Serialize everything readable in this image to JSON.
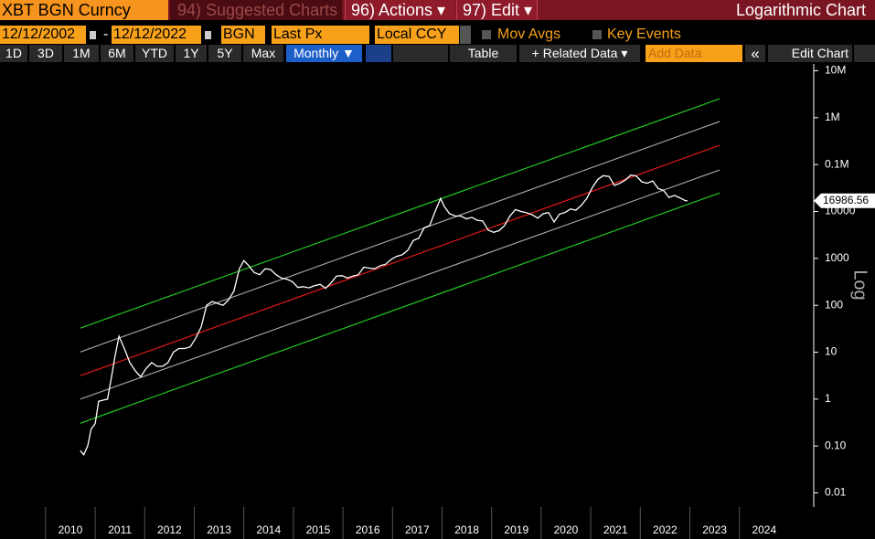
{
  "toolbar": {
    "security": "XBT BGN Curncy",
    "suggested": "94) Suggested Charts",
    "actions": "96) Actions ▾",
    "edit": "97) Edit ▾",
    "chart_mode": "Logarithmic Chart",
    "start_date": "12/12/2002",
    "date_sep": "-",
    "end_date": "12/12/2022",
    "source": "BGN",
    "field": "Last Px",
    "currency": "Local CCY",
    "mov_avgs": "Mov Avgs",
    "key_events": "Key Events",
    "periods": [
      "1D",
      "3D",
      "1M",
      "6M",
      "YTD",
      "1Y",
      "5Y",
      "Max"
    ],
    "frequency": "Monthly ▼",
    "table": "Table",
    "related": "+ Related Data ▾",
    "add_data": "Add Data",
    "collapse": "«",
    "edit_chart": "Edit Chart"
  },
  "chart_data": {
    "type": "line",
    "ylabel": "Log",
    "log_scale": true,
    "grid": false,
    "xlim": [
      2009.08,
      2025.5
    ],
    "xticks": [
      2010,
      2011,
      2012,
      2013,
      2014,
      2015,
      2016,
      2017,
      2018,
      2019,
      2020,
      2021,
      2022,
      2023,
      2024
    ],
    "ylim": [
      0.005,
      14000000
    ],
    "yticks": [
      {
        "value": 10000000,
        "label": "10M"
      },
      {
        "value": 1000000,
        "label": "1M"
      },
      {
        "value": 100000,
        "label": "0.1M"
      },
      10000,
      1000,
      100,
      10,
      1,
      {
        "value": 0.1,
        "label": "0.10"
      },
      0.01
    ],
    "series": [
      {
        "color": "#ffffff",
        "x": [
          2010.7,
          2010.77,
          2010.85,
          2010.92,
          2011.0,
          2011.07,
          2011.16,
          2011.25,
          2011.33,
          2011.4,
          2011.48,
          2011.59,
          2011.7,
          2011.81,
          2011.92,
          2012.03,
          2012.14,
          2012.25,
          2012.36,
          2012.47,
          2012.58,
          2012.69,
          2012.8,
          2012.92,
          2013.03,
          2013.14,
          2013.25,
          2013.36,
          2013.47,
          2013.58,
          2013.69,
          2013.8,
          2013.91,
          2014.0,
          2014.1,
          2014.21,
          2014.32,
          2014.43,
          2014.54,
          2014.65,
          2014.76,
          2014.87,
          2014.98,
          2015.09,
          2015.2,
          2015.31,
          2015.42,
          2015.54,
          2015.65,
          2015.76,
          2015.87,
          2015.98,
          2016.09,
          2016.2,
          2016.31,
          2016.42,
          2016.53,
          2016.64,
          2016.75,
          2016.86,
          2016.97,
          2017.08,
          2017.2,
          2017.31,
          2017.42,
          2017.53,
          2017.64,
          2017.75,
          2017.86,
          2017.97,
          2018.04,
          2018.15,
          2018.27,
          2018.38,
          2018.49,
          2018.6,
          2018.71,
          2018.82,
          2018.93,
          2019.04,
          2019.15,
          2019.26,
          2019.37,
          2019.48,
          2019.59,
          2019.7,
          2019.82,
          2019.93,
          2020.04,
          2020.15,
          2020.26,
          2020.37,
          2020.48,
          2020.59,
          2020.7,
          2020.81,
          2020.92,
          2021.03,
          2021.14,
          2021.25,
          2021.37,
          2021.48,
          2021.59,
          2021.7,
          2021.81,
          2021.92,
          2022.03,
          2022.14,
          2022.25,
          2022.36,
          2022.47,
          2022.58,
          2022.69,
          2022.8,
          2022.91,
          2022.95
        ],
        "values": [
          0.08,
          0.065,
          0.1,
          0.23,
          0.3,
          0.9,
          0.95,
          1.0,
          3,
          8,
          22,
          12,
          6,
          4,
          3,
          4.5,
          6,
          5,
          5,
          6,
          10,
          12,
          12,
          13,
          20,
          35,
          100,
          120,
          110,
          100,
          130,
          200,
          600,
          900,
          700,
          500,
          450,
          600,
          580,
          450,
          380,
          360,
          320,
          240,
          250,
          235,
          260,
          280,
          230,
          300,
          420,
          430,
          380,
          420,
          450,
          650,
          620,
          600,
          700,
          750,
          950,
          1100,
          1200,
          1500,
          2400,
          2700,
          4500,
          5000,
          10000,
          19000,
          13000,
          9000,
          8000,
          8000,
          7000,
          7500,
          6500,
          6300,
          4000,
          3600,
          3900,
          5000,
          8000,
          11000,
          10000,
          9500,
          8500,
          7200,
          9000,
          9500,
          6000,
          8800,
          9500,
          11300,
          10700,
          13500,
          19000,
          32000,
          48000,
          58000,
          56000,
          36000,
          40000,
          47000,
          60000,
          57000,
          43000,
          40000,
          45000,
          31000,
          28000,
          20000,
          22000,
          19500,
          17000,
          16986.56
        ]
      },
      {
        "color": "#22c822",
        "x": [
          2010.7,
          2023.6
        ],
        "values": [
          32.6,
          2540000
        ]
      },
      {
        "color": "#a0a0a0",
        "x": [
          2010.7,
          2023.6
        ],
        "values": [
          10.1,
          828000
        ]
      },
      {
        "color": "#e01818",
        "x": [
          2010.7,
          2023.6
        ],
        "values": [
          3.15,
          257000
        ]
      },
      {
        "color": "#a0a0a0",
        "x": [
          2010.7,
          2023.6
        ],
        "values": [
          1.0,
          76800
        ]
      },
      {
        "color": "#22c822",
        "x": [
          2010.7,
          2023.6
        ],
        "values": [
          0.305,
          24900
        ]
      }
    ]
  }
}
